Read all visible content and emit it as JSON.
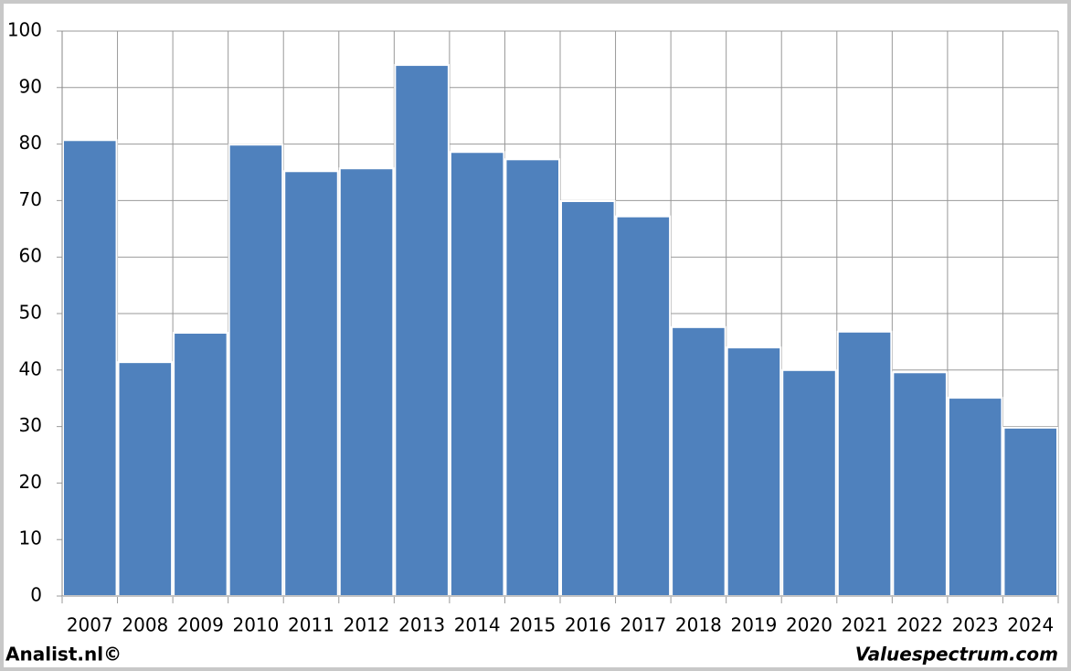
{
  "chart_data": {
    "type": "bar",
    "categories": [
      "2007",
      "2008",
      "2009",
      "2010",
      "2011",
      "2012",
      "2013",
      "2014",
      "2015",
      "2016",
      "2017",
      "2018",
      "2019",
      "2020",
      "2021",
      "2022",
      "2023",
      "2024"
    ],
    "values": [
      80.7,
      41.4,
      46.6,
      79.9,
      75.2,
      75.7,
      94.0,
      78.6,
      77.3,
      69.9,
      67.2,
      47.6,
      44.0,
      40.0,
      46.8,
      39.6,
      35.1,
      29.8
    ],
    "color": "#4f81bd",
    "ylim": [
      0,
      100
    ],
    "yticks": [
      0,
      10,
      20,
      30,
      40,
      50,
      60,
      70,
      80,
      90,
      100
    ],
    "grid": true,
    "credits": [
      "Analist.nl©",
      "Valuespectrum.com"
    ]
  }
}
